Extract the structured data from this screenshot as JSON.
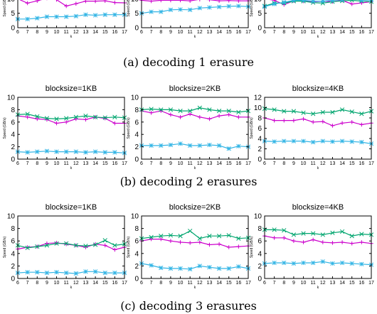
{
  "captions": {
    "a": "(a) decoding 1 erasure",
    "b": "(b) decoding 2 erasures",
    "c": "(c) decoding 3 erasures"
  },
  "colors": {
    "magenta": "#cc00cc",
    "green": "#00a56e",
    "cyan": "#33b5e5"
  },
  "chart_data": [
    {
      "type": "line",
      "panel": "a",
      "title": "",
      "xlabel": "k",
      "ylabel": "Speed (GB/s)",
      "x": [
        6,
        7,
        8,
        9,
        10,
        11,
        12,
        13,
        14,
        15,
        16,
        17
      ],
      "xticks": [
        6,
        7,
        8,
        9,
        10,
        11,
        12,
        13,
        14,
        15,
        16,
        17
      ],
      "ylim": [
        0,
        15
      ],
      "yticks": [
        0,
        5,
        10,
        15
      ],
      "series": [
        {
          "color": "#cc00cc",
          "marker": "plus",
          "values": [
            10,
            8.5,
            9.3,
            10.2,
            9.7,
            7.5,
            8.3,
            9.2,
            9.2,
            9.3,
            8.7,
            8.6
          ]
        },
        {
          "color": "#33b5e5",
          "marker": "asterisk",
          "values": [
            3.0,
            3.0,
            3.3,
            3.8,
            3.8,
            3.8,
            4.0,
            4.5,
            4.3,
            4.5,
            4.5,
            4.5
          ]
        }
      ]
    },
    {
      "type": "line",
      "panel": "a",
      "title": "",
      "xlabel": "k",
      "ylabel": "Speed (GB/s)",
      "x": [
        6,
        7,
        8,
        9,
        10,
        11,
        12,
        13,
        14,
        15,
        16,
        17
      ],
      "xticks": [
        6,
        7,
        8,
        9,
        10,
        11,
        12,
        13,
        14,
        15,
        16,
        17
      ],
      "ylim": [
        0,
        15
      ],
      "yticks": [
        0,
        5,
        10,
        15
      ],
      "series": [
        {
          "color": "#cc00cc",
          "marker": "plus",
          "values": [
            9.5,
            9.2,
            9.5,
            9.5,
            9.5,
            9.3,
            9.8,
            9.7,
            9.3,
            9.4,
            9.3,
            9.3
          ]
        },
        {
          "color": "#33b5e5",
          "marker": "asterisk",
          "values": [
            5.0,
            5.5,
            5.5,
            6.2,
            6.3,
            6.2,
            6.8,
            7.0,
            7.2,
            7.4,
            7.5,
            7.3
          ]
        }
      ]
    },
    {
      "type": "line",
      "panel": "a",
      "title": "",
      "xlabel": "k",
      "ylabel": "Speed (GB/s)",
      "x": [
        6,
        7,
        8,
        9,
        10,
        11,
        12,
        13,
        14,
        15,
        16,
        17
      ],
      "xticks": [
        6,
        7,
        8,
        9,
        10,
        11,
        12,
        13,
        14,
        15,
        16,
        17
      ],
      "ylim": [
        0,
        15
      ],
      "yticks": [
        0,
        5,
        10,
        15
      ],
      "series": [
        {
          "color": "#cc00cc",
          "marker": "plus",
          "values": [
            10,
            9.5,
            8.0,
            9.3,
            9.2,
            9.0,
            9.2,
            9.0,
            9.5,
            8.2,
            8.6,
            9.0
          ]
        },
        {
          "color": "#00a56e",
          "marker": "x",
          "values": [
            7.5,
            8.5,
            8.5,
            9.2,
            9.2,
            8.7,
            8.5,
            9.0,
            9.3,
            9.5,
            9.2,
            9.0
          ]
        },
        {
          "color": "#33b5e5",
          "marker": "asterisk",
          "values": [
            7.3,
            8.2,
            8.8,
            9.5,
            9.5,
            9.2,
            9.2,
            9.5,
            9.7,
            10.2,
            9.5,
            9.6
          ]
        }
      ]
    },
    {
      "type": "line",
      "panel": "b",
      "title": "blocksize=1KB",
      "xlabel": "k",
      "ylabel": "Speed (GB/s)",
      "x": [
        6,
        7,
        8,
        9,
        10,
        11,
        12,
        13,
        14,
        15,
        16,
        17
      ],
      "xticks": [
        6,
        7,
        8,
        9,
        10,
        11,
        12,
        13,
        14,
        15,
        16,
        17
      ],
      "ylim": [
        0,
        10
      ],
      "yticks": [
        0,
        2,
        4,
        6,
        8,
        10
      ],
      "series": [
        {
          "color": "#cc00cc",
          "marker": "plus",
          "values": [
            7.0,
            6.8,
            6.5,
            6.4,
            5.8,
            6.0,
            6.5,
            6.4,
            6.8,
            6.6,
            5.8,
            5.8
          ]
        },
        {
          "color": "#00a56e",
          "marker": "x",
          "values": [
            7.2,
            7.3,
            6.9,
            6.6,
            6.5,
            6.6,
            6.8,
            7.0,
            6.8,
            6.7,
            6.8,
            6.7
          ]
        },
        {
          "color": "#33b5e5",
          "marker": "asterisk",
          "values": [
            1.2,
            1.1,
            1.2,
            1.3,
            1.2,
            1.2,
            1.2,
            1.1,
            1.2,
            1.1,
            1.1,
            1.0
          ]
        }
      ]
    },
    {
      "type": "line",
      "panel": "b",
      "title": "blocksize=2KB",
      "xlabel": "k",
      "ylabel": "Speed (GB/s)",
      "x": [
        6,
        7,
        8,
        9,
        10,
        11,
        12,
        13,
        14,
        15,
        16,
        17
      ],
      "xticks": [
        6,
        7,
        8,
        9,
        10,
        11,
        12,
        13,
        14,
        15,
        16,
        17
      ],
      "ylim": [
        0,
        10
      ],
      "yticks": [
        0,
        2,
        4,
        6,
        8,
        10
      ],
      "series": [
        {
          "color": "#cc00cc",
          "marker": "plus",
          "values": [
            7.8,
            7.5,
            7.8,
            7.2,
            6.8,
            7.3,
            6.8,
            6.5,
            7.0,
            7.2,
            6.8,
            6.8
          ]
        },
        {
          "color": "#00a56e",
          "marker": "x",
          "values": [
            8.0,
            8.1,
            8.0,
            8.0,
            7.8,
            7.8,
            8.3,
            8.0,
            7.8,
            7.8,
            7.6,
            7.8
          ]
        },
        {
          "color": "#33b5e5",
          "marker": "asterisk",
          "values": [
            2.2,
            2.2,
            2.2,
            2.3,
            2.5,
            2.2,
            2.2,
            2.3,
            2.2,
            1.7,
            2.1,
            2.0
          ]
        }
      ]
    },
    {
      "type": "line",
      "panel": "b",
      "title": "blocksize=4KB",
      "xlabel": "k",
      "ylabel": "Speed (GB/s)",
      "x": [
        6,
        7,
        8,
        9,
        10,
        11,
        12,
        13,
        14,
        15,
        16,
        17
      ],
      "xticks": [
        6,
        7,
        8,
        9,
        10,
        11,
        12,
        13,
        14,
        15,
        16,
        17
      ],
      "ylim": [
        0,
        12
      ],
      "yticks": [
        0,
        2,
        4,
        6,
        8,
        10,
        12
      ],
      "series": [
        {
          "color": "#cc00cc",
          "marker": "plus",
          "values": [
            8.0,
            7.5,
            7.5,
            7.5,
            7.8,
            7.2,
            7.3,
            6.5,
            7.0,
            7.2,
            6.7,
            7.0
          ]
        },
        {
          "color": "#00a56e",
          "marker": "x",
          "values": [
            9.8,
            9.6,
            9.3,
            9.3,
            9.0,
            8.8,
            9.1,
            9.1,
            9.6,
            9.2,
            8.8,
            9.3
          ]
        },
        {
          "color": "#33b5e5",
          "marker": "asterisk",
          "values": [
            3.5,
            3.4,
            3.5,
            3.5,
            3.5,
            3.3,
            3.5,
            3.4,
            3.5,
            3.4,
            3.3,
            3.0
          ]
        }
      ]
    },
    {
      "type": "line",
      "panel": "c",
      "title": "blocksize=1KB",
      "xlabel": "k",
      "ylabel": "Speed (GB/s)",
      "x": [
        6,
        7,
        8,
        9,
        10,
        11,
        12,
        13,
        14,
        15,
        16,
        17
      ],
      "xticks": [
        6,
        7,
        8,
        9,
        10,
        11,
        12,
        13,
        14,
        15,
        16,
        17
      ],
      "ylim": [
        0,
        10
      ],
      "yticks": [
        0,
        2,
        4,
        6,
        8,
        10
      ],
      "series": [
        {
          "color": "#cc00cc",
          "marker": "plus",
          "values": [
            4.7,
            5.0,
            5.1,
            5.6,
            5.7,
            5.5,
            5.3,
            5.0,
            5.5,
            5.3,
            4.6,
            5.0
          ]
        },
        {
          "color": "#00a56e",
          "marker": "x",
          "values": [
            5.3,
            4.9,
            5.1,
            5.3,
            5.6,
            5.6,
            5.3,
            5.2,
            5.4,
            6.1,
            5.3,
            5.5
          ]
        },
        {
          "color": "#33b5e5",
          "marker": "asterisk",
          "values": [
            0.9,
            1.0,
            1.0,
            0.9,
            1.0,
            0.9,
            0.8,
            1.1,
            1.1,
            0.9,
            0.9,
            0.9
          ]
        }
      ]
    },
    {
      "type": "line",
      "panel": "c",
      "title": "blocksize=2KB",
      "xlabel": "k",
      "ylabel": "Speed (GB/s)",
      "x": [
        6,
        7,
        8,
        9,
        10,
        11,
        12,
        13,
        14,
        15,
        16,
        17
      ],
      "xticks": [
        6,
        7,
        8,
        9,
        10,
        11,
        12,
        13,
        14,
        15,
        16,
        17
      ],
      "ylim": [
        0,
        10
      ],
      "yticks": [
        0,
        2,
        4,
        6,
        8,
        10
      ],
      "series": [
        {
          "color": "#cc00cc",
          "marker": "plus",
          "values": [
            6.0,
            6.3,
            6.3,
            6.0,
            5.8,
            5.7,
            5.8,
            5.4,
            5.5,
            5.0,
            5.1,
            5.2
          ]
        },
        {
          "color": "#00a56e",
          "marker": "x",
          "values": [
            6.4,
            6.6,
            6.8,
            6.9,
            6.8,
            7.6,
            6.4,
            6.8,
            6.8,
            6.9,
            6.4,
            6.5
          ]
        },
        {
          "color": "#33b5e5",
          "marker": "asterisk",
          "values": [
            2.4,
            2.1,
            1.7,
            1.6,
            1.6,
            1.5,
            2.0,
            1.8,
            1.6,
            1.6,
            1.9,
            1.6
          ]
        }
      ]
    },
    {
      "type": "line",
      "panel": "c",
      "title": "blocksize=4KB",
      "xlabel": "k",
      "ylabel": "Speed (GB/s)",
      "x": [
        6,
        7,
        8,
        9,
        10,
        11,
        12,
        13,
        14,
        15,
        16,
        17
      ],
      "xticks": [
        6,
        7,
        8,
        9,
        10,
        11,
        12,
        13,
        14,
        15,
        16,
        17
      ],
      "ylim": [
        0,
        10
      ],
      "yticks": [
        0,
        2,
        4,
        6,
        8,
        10
      ],
      "series": [
        {
          "color": "#cc00cc",
          "marker": "plus",
          "values": [
            6.8,
            6.5,
            6.5,
            6.0,
            5.8,
            6.2,
            5.8,
            5.7,
            5.8,
            5.6,
            5.8,
            5.6
          ]
        },
        {
          "color": "#00a56e",
          "marker": "x",
          "values": [
            7.8,
            7.8,
            7.7,
            7.0,
            7.2,
            7.2,
            7.0,
            7.3,
            7.5,
            6.8,
            7.1,
            7.0
          ]
        },
        {
          "color": "#33b5e5",
          "marker": "asterisk",
          "values": [
            2.4,
            2.5,
            2.5,
            2.4,
            2.5,
            2.5,
            2.7,
            2.4,
            2.5,
            2.4,
            2.3,
            2.2
          ]
        }
      ]
    }
  ]
}
